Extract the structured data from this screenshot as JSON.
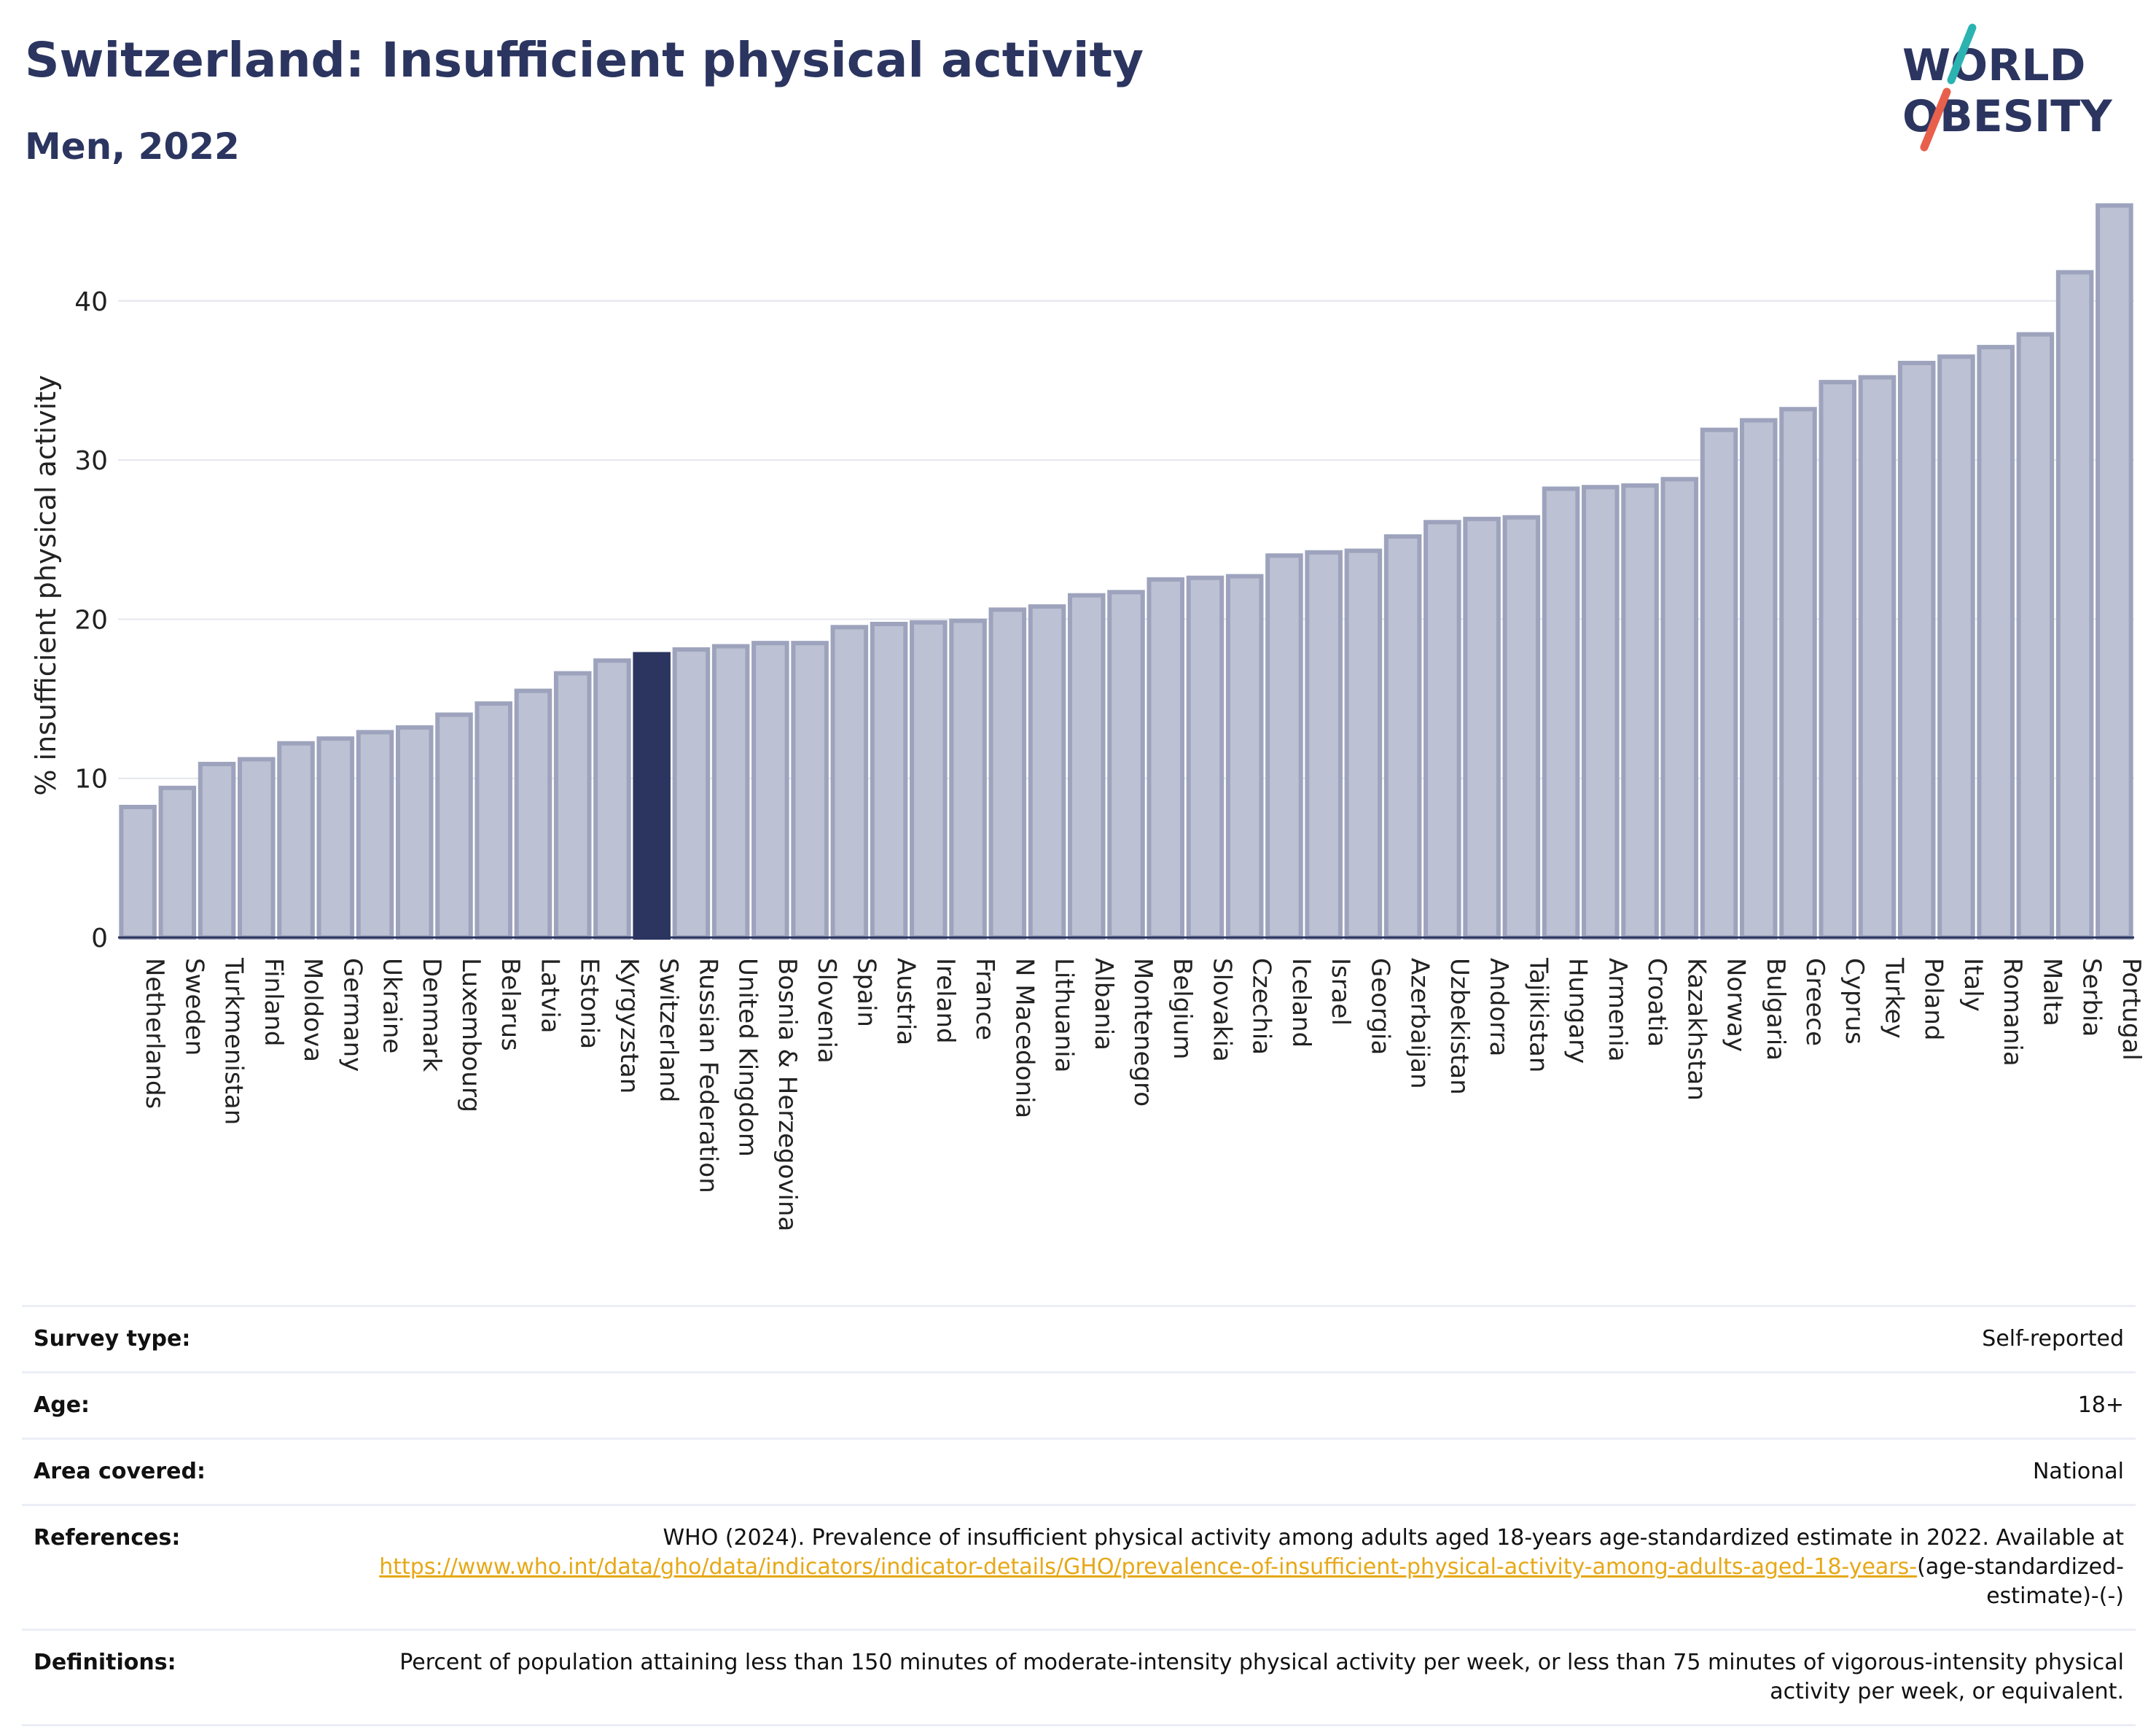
{
  "header": {
    "title": "Switzerland: Insufficient physical activity",
    "subtitle": "Men, 2022"
  },
  "logo": {
    "line1": "WORLD",
    "line2": "OBESITY",
    "colors": {
      "text": "#2b3560",
      "slash_top": "#2bb3b1",
      "slash_bottom": "#e8604c"
    }
  },
  "chart_data": {
    "type": "bar",
    "ylabel": "% insufficient physical activity",
    "ylim": [
      0,
      47
    ],
    "yticks": [
      0,
      10,
      20,
      30,
      40
    ],
    "grid": true,
    "highlight": "Switzerland",
    "colors": {
      "bar": "#bcc1d3",
      "bar_edge": "#9ea3bd",
      "highlight": "#2b3560"
    },
    "categories": [
      "Netherlands",
      "Sweden",
      "Turkmenistan",
      "Finland",
      "Moldova",
      "Germany",
      "Ukraine",
      "Denmark",
      "Luxembourg",
      "Belarus",
      "Latvia",
      "Estonia",
      "Kyrgyzstan",
      "Switzerland",
      "Russian Federation",
      "United Kingdom",
      "Bosnia & Herzegovina",
      "Slovenia",
      "Spain",
      "Austria",
      "Ireland",
      "France",
      "N Macedonia",
      "Lithuania",
      "Albania",
      "Montenegro",
      "Belgium",
      "Slovakia",
      "Czechia",
      "Iceland",
      "Israel",
      "Georgia",
      "Azerbaijan",
      "Uzbekistan",
      "Andorra",
      "Tajikistan",
      "Hungary",
      "Armenia",
      "Croatia",
      "Kazakhstan",
      "Norway",
      "Bulgaria",
      "Greece",
      "Cyprus",
      "Turkey",
      "Poland",
      "Italy",
      "Romania",
      "Malta",
      "Serbia",
      "Portugal"
    ],
    "values": [
      8.2,
      9.4,
      10.9,
      11.2,
      12.2,
      12.5,
      12.9,
      13.2,
      14.0,
      14.7,
      15.5,
      16.6,
      17.4,
      17.8,
      18.1,
      18.3,
      18.5,
      18.5,
      19.5,
      19.7,
      19.8,
      19.9,
      20.6,
      20.8,
      21.5,
      21.7,
      22.5,
      22.6,
      22.7,
      24.0,
      24.2,
      24.3,
      25.2,
      26.1,
      26.3,
      26.4,
      28.2,
      28.3,
      28.4,
      28.8,
      31.9,
      32.5,
      33.2,
      34.9,
      35.2,
      36.1,
      36.5,
      37.1,
      37.9,
      41.8,
      46.0
    ]
  },
  "info": {
    "survey_label": "Survey type:",
    "survey_value": "Self-reported",
    "age_label": "Age:",
    "age_value": "18+",
    "area_label": "Area covered:",
    "area_value": "National",
    "references_label": "References:",
    "references_text": "WHO (2024). Prevalence of insufficient physical activity among adults aged 18-years age-standardized estimate in 2022. Available at",
    "references_link": "https://www.who.int/data/gho/data/indicators/indicator-details/GHO/prevalence-of-insufficient-physical-activity-among-adults-aged-18-years-",
    "references_suffix": "(age-standardized-estimate)-(-)",
    "definitions_label": "Definitions:",
    "definitions_text": "Percent of population attaining less than 150 minutes of moderate-intensity physical activity per week, or less than 75 minutes of vigorous-intensity physical activity per week, or equivalent."
  }
}
